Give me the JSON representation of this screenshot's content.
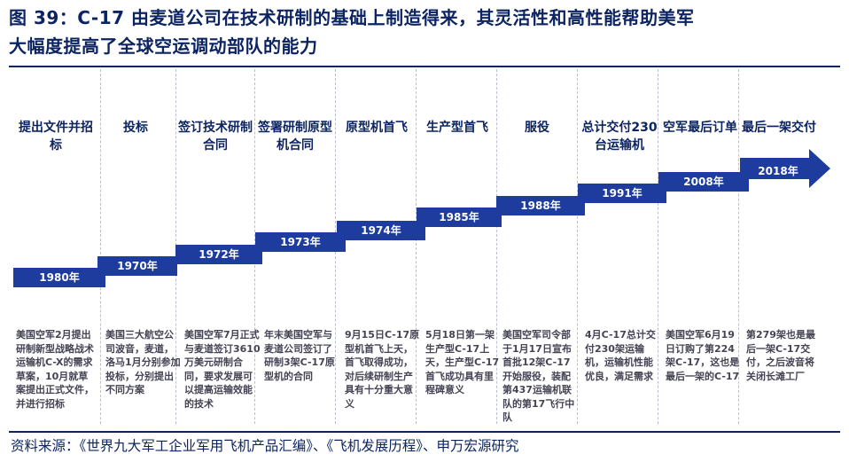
{
  "title": {
    "line1": "图 39：C-17 由麦道公司在技术研制的基础上制造得来，其灵活性和高性能帮助美军",
    "line2": "大幅度提高了全球空运调动部队的能力"
  },
  "milestones": [
    {
      "event": "提出文件并招标",
      "year": "1980年",
      "desc": "美国空军2月提出研制新型战略战术运输机C-X的需求草案，10月就草案提出正式文件，并进行招标"
    },
    {
      "event": "投标",
      "year": "1970年",
      "desc": "美国三大航空公司波音，麦道，洛马1月分别参加投标，分别提出不同方案"
    },
    {
      "event": "签订技术研制合同",
      "year": "1972年",
      "desc": "美国空军7月正式与麦道签订3610万美元研制合同，要求发展可以提高运输效能的技术"
    },
    {
      "event": "签署研制原型机合同",
      "year": "1973年",
      "desc": "年末美国空军与麦道公司签订了研制3架C-17原型机的合同"
    },
    {
      "event": "原型机首飞",
      "year": "1974年",
      "desc": "9月15日C-17原型机首飞上天，首飞取得成功，对后续研制生产具有十分重大意义"
    },
    {
      "event": "生产型首飞",
      "year": "1985年",
      "desc": "5月18日第一架生产型C-17上天，生产型C-17首飞成功具有里程碑意义"
    },
    {
      "event": "服役",
      "year": "1988年",
      "desc": "美国空军司令部于1月17日宣布首批12架C-17开始服役，装配第437运输机联队的第17飞行中队"
    },
    {
      "event": "总计交付230台运输机",
      "year": "1991年",
      "desc": "4月C-17总计交付230架运输机，运输机性能优良，满足需求"
    },
    {
      "event": "空军最后订单",
      "year": "2008年",
      "desc": "美国空军6月19日订购了第224架C-17，这也是最后一架的C-17"
    },
    {
      "event": "最后一架交付",
      "year": "2018年",
      "desc": "第279架也是最后一架C-17交付，之后波音将关闭长滩工厂"
    }
  ],
  "source": "资料来源：《世界九大军工企业军用飞机产品汇编》、《飞机发展历程》、申万宏源研究",
  "colors": {
    "accent": "#1d3c9e",
    "title": "#0c2461"
  }
}
